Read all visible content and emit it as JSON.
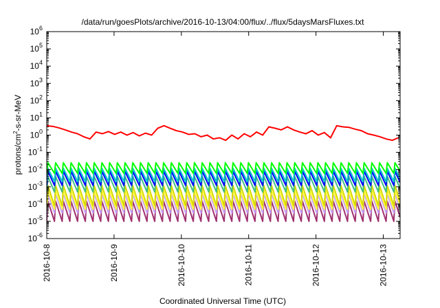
{
  "chart_data": {
    "type": "line",
    "title": "/data/run/goesPlots/archive/2016-10-13/04:00/flux/../flux/5daysMarsFluxes.txt",
    "xlabel": "Coordinated Universal Time (UTC)",
    "ylabel_base": "protons/cm",
    "ylabel_sup": "2",
    "ylabel_rest": "-s-sr-MeV",
    "xlim": [
      "2016-10-08",
      "2016-10-13 06:00"
    ],
    "ylim": [
      1e-06,
      1000000.0
    ],
    "yscale": "log",
    "grid": false,
    "legend": "none",
    "x_ticks": [
      "2016-10-8",
      "2016-10-9",
      "2016-10-10",
      "2016-10-11",
      "2016-10-12",
      "2016-10-13"
    ],
    "y_ticks": [
      {
        "base": "10",
        "exp": "-6"
      },
      {
        "base": "10",
        "exp": "-5"
      },
      {
        "base": "10",
        "exp": "-4"
      },
      {
        "base": "10",
        "exp": "-3"
      },
      {
        "base": "10",
        "exp": "-2"
      },
      {
        "base": "10",
        "exp": "-1"
      },
      {
        "base": "10",
        "exp": "0"
      },
      {
        "base": "10",
        "exp": "1"
      },
      {
        "base": "10",
        "exp": "2"
      },
      {
        "base": "10",
        "exp": "3"
      },
      {
        "base": "10",
        "exp": "4"
      },
      {
        "base": "10",
        "exp": "5"
      },
      {
        "base": "10",
        "exp": "6"
      }
    ],
    "series": [
      {
        "color": "#ff0000",
        "x": [
          "2016-10-08 00:00",
          "2016-10-08 02:12",
          "2016-10-08 04:24",
          "2016-10-08 06:36",
          "2016-10-08 08:48",
          "2016-10-08 11:00",
          "2016-10-08 13:12",
          "2016-10-08 15:24",
          "2016-10-08 17:36",
          "2016-10-08 19:48",
          "2016-10-08 22:00",
          "2016-10-09 00:12",
          "2016-10-09 02:24",
          "2016-10-09 04:36",
          "2016-10-09 06:48",
          "2016-10-09 09:00",
          "2016-10-09 11:12",
          "2016-10-09 13:24",
          "2016-10-09 15:36",
          "2016-10-09 17:48",
          "2016-10-09 20:00",
          "2016-10-09 22:12",
          "2016-10-10 00:24",
          "2016-10-10 02:36",
          "2016-10-10 04:48",
          "2016-10-10 07:00",
          "2016-10-10 09:12",
          "2016-10-10 11:24",
          "2016-10-10 13:36",
          "2016-10-10 15:48",
          "2016-10-10 18:00",
          "2016-10-10 20:12",
          "2016-10-10 22:24",
          "2016-10-11 00:36",
          "2016-10-11 02:48",
          "2016-10-11 05:00",
          "2016-10-11 07:12",
          "2016-10-11 09:24",
          "2016-10-11 11:36",
          "2016-10-11 13:48",
          "2016-10-11 16:00",
          "2016-10-11 18:12",
          "2016-10-11 20:24",
          "2016-10-11 22:36",
          "2016-10-12 00:48",
          "2016-10-12 03:00",
          "2016-10-12 05:12",
          "2016-10-12 07:24",
          "2016-10-12 09:36",
          "2016-10-12 11:48",
          "2016-10-12 14:00",
          "2016-10-12 16:12",
          "2016-10-12 18:24",
          "2016-10-12 20:36",
          "2016-10-12 22:48",
          "2016-10-13 01:00",
          "2016-10-13 03:12",
          "2016-10-13 05:24"
        ],
        "y": [
          3.5,
          3.2,
          2.6,
          2.0,
          1.5,
          1.2,
          0.8,
          0.6,
          1.5,
          1.2,
          1.6,
          1.1,
          1.5,
          1.0,
          1.4,
          0.9,
          1.3,
          1.0,
          2.5,
          3.5,
          2.5,
          1.8,
          1.5,
          1.1,
          1.2,
          0.8,
          1.0,
          0.6,
          0.7,
          0.5,
          1.0,
          0.6,
          1.2,
          0.8,
          1.5,
          1.0,
          3.0,
          2.5,
          2.0,
          3.0,
          2.0,
          1.5,
          1.2,
          1.8,
          1.0,
          1.4,
          0.7,
          3.5,
          3.0,
          2.8,
          2.2,
          1.8,
          1.2,
          1.0,
          0.8,
          0.6,
          0.5,
          0.7
        ]
      }
    ],
    "periodic_series": {
      "start": "2016-10-08 00:00",
      "end": "2016-10-13 06:00",
      "period_hours": 2.75,
      "bands": [
        {
          "color": "#00ff00",
          "peak": 0.025,
          "trough": 0.006
        },
        {
          "color": "#00c8c8",
          "peak": 0.012,
          "trough": 0.002
        },
        {
          "color": "#0000ff",
          "peak": 0.008,
          "trough": 0.0012
        },
        {
          "color": "#40c080",
          "peak": 0.004,
          "trough": 0.0005
        },
        {
          "color": "#d8d800",
          "peak": 0.0012,
          "trough": 8e-05
        },
        {
          "color": "#ffff40",
          "peak": 0.0006,
          "trough": 5e-05
        },
        {
          "color": "#c8a0ff",
          "peak": 0.0004,
          "trough": 3e-05
        },
        {
          "color": "#a03070",
          "peak": 0.00015,
          "trough": 1e-05
        }
      ]
    }
  }
}
